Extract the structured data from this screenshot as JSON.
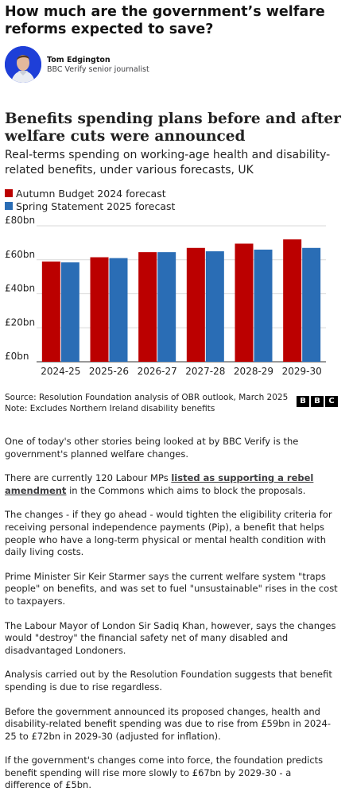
{
  "header": {
    "title": "How much are the government’s welfare reforms expected to save?"
  },
  "author": {
    "name": "Tom Edgington",
    "role": "BBC Verify senior journalist"
  },
  "chart_data": {
    "type": "bar",
    "title": "Benefits spending plans before and after welfare cuts were announced",
    "subtitle": "Real-terms spending on working-age health and disability-related benefits, under various forecasts, UK",
    "categories": [
      "2024-25",
      "2025-26",
      "2026-27",
      "2027-28",
      "2028-29",
      "2029-30"
    ],
    "series": [
      {
        "name": "Autumn Budget 2024 forecast",
        "color": "#bb0000",
        "values": [
          59,
          61.5,
          64.5,
          67,
          69.5,
          72
        ]
      },
      {
        "name": "Spring Statement 2025 forecast",
        "color": "#2a6db5",
        "values": [
          58.5,
          61,
          64.5,
          65,
          66,
          67
        ]
      }
    ],
    "y_ticks": [
      "£0bn",
      "£20bn",
      "£40bn",
      "£60bn",
      "£80bn"
    ],
    "ylim": [
      0,
      80
    ],
    "grid": true,
    "legend": "top-left"
  },
  "source": {
    "line1": "Source: Resolution Foundation analysis of OBR outlook, March 2025",
    "line2": "Note: Excludes Northern Ireland disability benefits",
    "logo": [
      "B",
      "B",
      "C"
    ]
  },
  "article": {
    "p1": "One of today's other stories being looked at by BBC Verify is the government's planned welfare changes.",
    "p2_before": "There are currently 120 Labour MPs ",
    "p2_link": "listed as supporting a rebel amendment",
    "p2_after": " in the Commons which aims to block the proposals.",
    "p3": "The changes - if they go ahead - would tighten the eligibility criteria for receiving personal independence payments (Pip), a benefit that helps people who have a long-term physical or mental health condition with daily living costs.",
    "p4": "Prime Minister Sir Keir Starmer says the current welfare system \"traps people\" on benefits, and was set to fuel \"unsustainable\" rises in the cost to taxpayers.",
    "p5": "The Labour Mayor of London Sir Sadiq Khan, however, says the changes would \"destroy\" the financial safety net of many disabled and disadvantaged Londoners.",
    "p6": "Analysis carried out by the Resolution Foundation suggests that benefit spending is due to rise regardless.",
    "p7": "Before the government announced its proposed changes, health and disability-related benefit spending was due to rise from £59bn in 2024-25 to £72bn in 2029-30 (adjusted for inflation).",
    "p8": "If the government's changes come into force, the foundation predicts benefit spending will rise more slowly to £67bn by 2029-30 - a difference of £5bn."
  }
}
